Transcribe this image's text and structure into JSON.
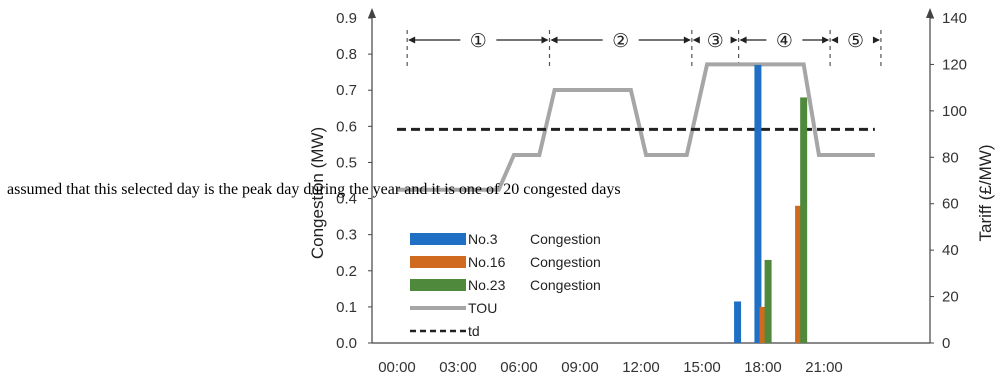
{
  "overlay_text": "assumed that this selected day is the peak day during the year and it is one of 20 congested days",
  "chart_data": {
    "type": "bar",
    "ylabel": "Congestion (MW)",
    "y2label": "Tariff (£/MW)",
    "ylim": [
      0,
      0.9
    ],
    "y2lim": [
      0,
      140
    ],
    "y_ticks": [
      "0.0",
      "0.1",
      "0.2",
      "0.3",
      "0.4",
      "0.5",
      "0.6",
      "0.7",
      "0.8",
      "0.9"
    ],
    "y2_ticks": [
      "0",
      "20",
      "40",
      "60",
      "80",
      "100",
      "120",
      "140"
    ],
    "x_ticks": [
      "00:00",
      "03:00",
      "06:00",
      "09:00",
      "12:00",
      "15:00",
      "18:00",
      "21:00"
    ],
    "phases": [
      "①",
      "②",
      "③",
      "④",
      "⑤"
    ],
    "phase_bounds_hours": [
      0.5,
      7.5,
      14.5,
      16.8,
      21.3,
      23.8
    ],
    "series": [
      {
        "name": "No.3",
        "legend_suffix": "Congestion",
        "color": "#1f6fc5",
        "bars": [
          [
            16.75,
            0.115
          ],
          [
            17.75,
            0.77
          ]
        ]
      },
      {
        "name": "No.16",
        "legend_suffix": "Congestion",
        "color": "#d06a1f",
        "bars": [
          [
            18.0,
            0.1
          ],
          [
            19.75,
            0.38
          ]
        ]
      },
      {
        "name": "No.23",
        "legend_suffix": "Congestion",
        "color": "#4f8a3c",
        "bars": [
          [
            18.25,
            0.23
          ],
          [
            20.0,
            0.68
          ]
        ]
      }
    ],
    "lines": [
      {
        "name": "TOU",
        "axis": "right",
        "color": "#a6a6a6",
        "style": "solid",
        "points": [
          [
            0,
            66
          ],
          [
            5,
            66
          ],
          [
            5.75,
            81
          ],
          [
            7,
            81
          ],
          [
            7.75,
            109
          ],
          [
            11.5,
            109
          ],
          [
            12.25,
            81
          ],
          [
            14.25,
            81
          ],
          [
            15.25,
            120
          ],
          [
            20,
            120
          ],
          [
            20.75,
            81
          ],
          [
            23.5,
            81
          ]
        ]
      },
      {
        "name": "td",
        "axis": "right",
        "color": "#222222",
        "style": "dashed",
        "points": [
          [
            0,
            92
          ],
          [
            23.5,
            92
          ]
        ]
      }
    ]
  }
}
